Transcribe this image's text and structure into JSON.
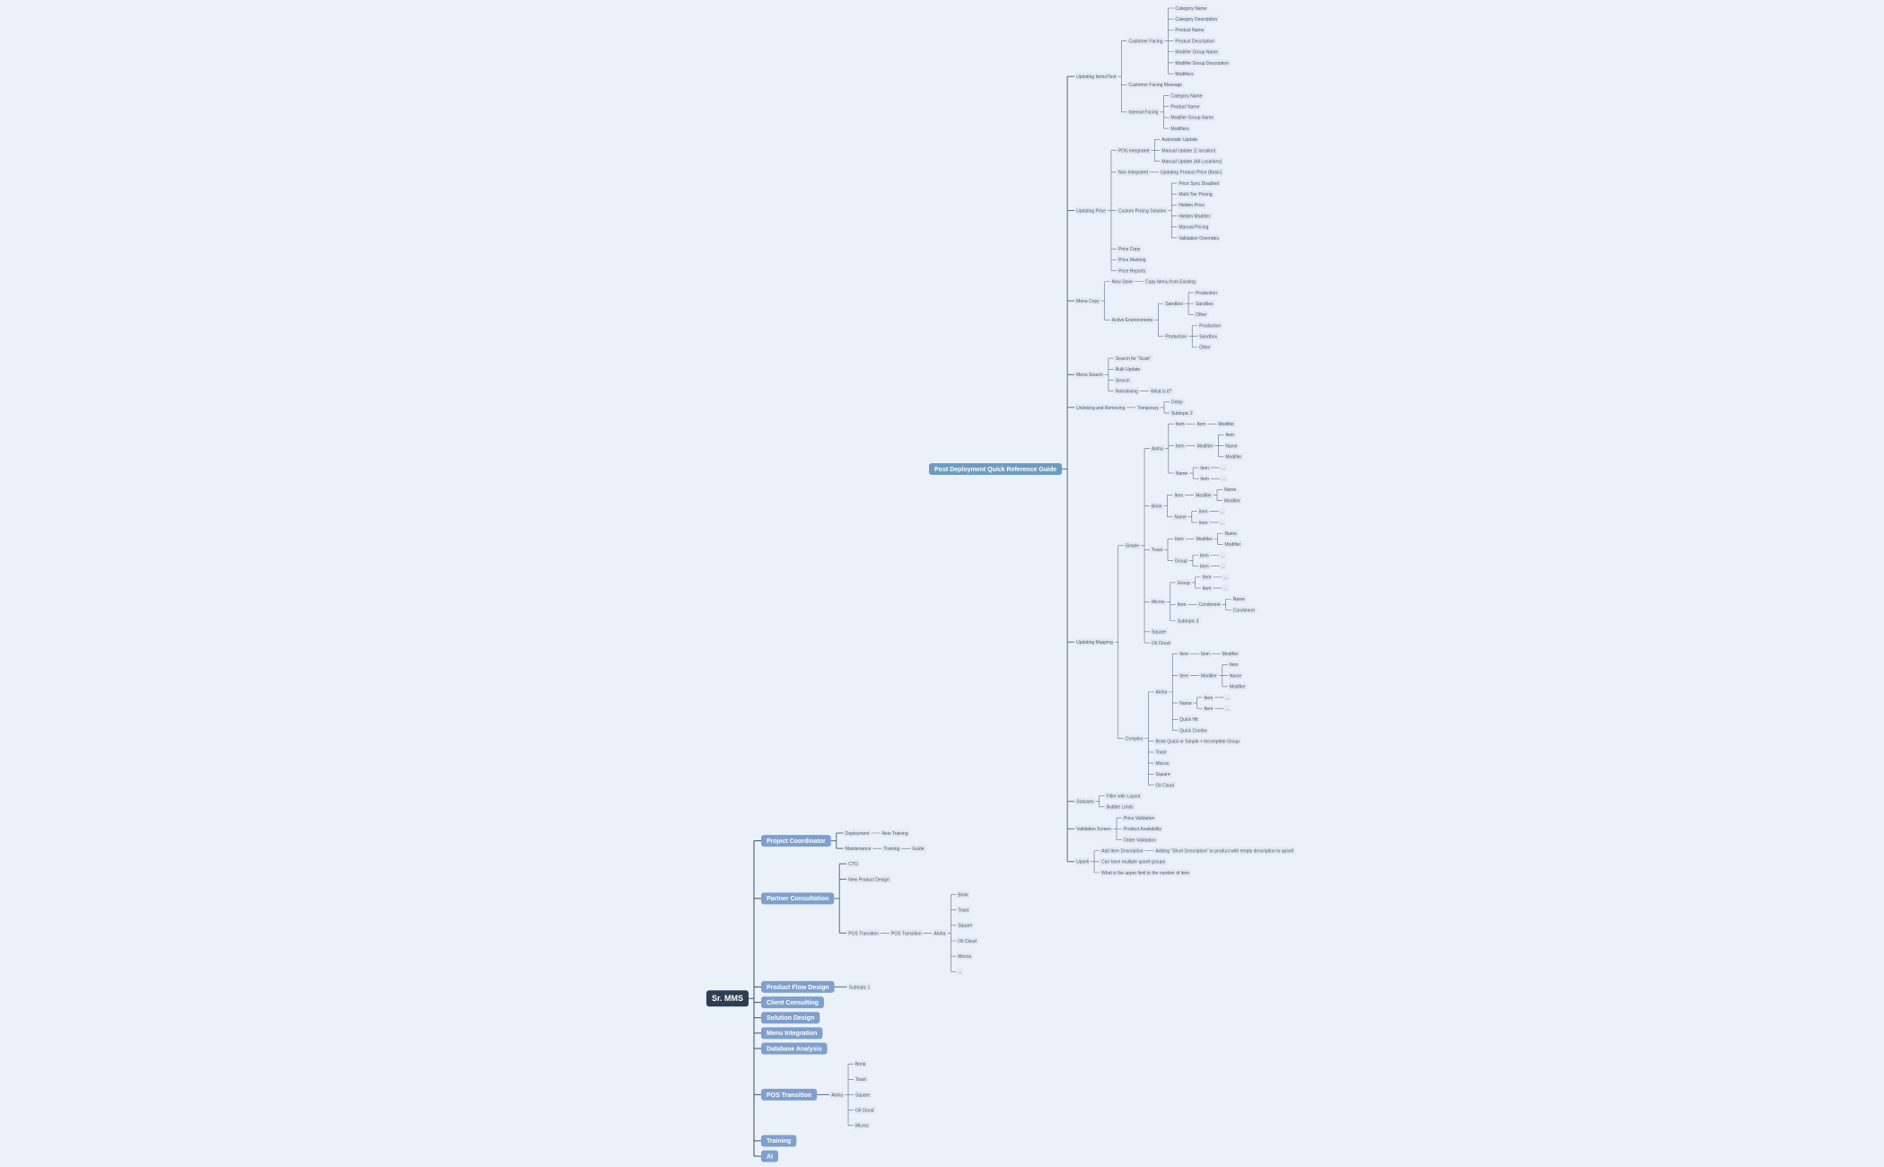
{
  "trees": [
    {
      "label": "Sr. MMS",
      "children": [
        {
          "label": "Project Coordinator",
          "children": [
            {
              "label": "Deployment",
              "children": [
                {
                  "label": "New Training"
                }
              ]
            },
            {
              "label": "Maintenance",
              "children": [
                {
                  "label": "Training",
                  "children": [
                    {
                      "label": "Guide"
                    }
                  ]
                }
              ]
            }
          ]
        },
        {
          "label": "Partner Consultation",
          "children": [
            {
              "label": "CTO"
            },
            {
              "label": "New Product Design"
            },
            {
              "label": "POS Transition",
              "children": [
                {
                  "label": "POS Transition",
                  "children": [
                    {
                      "label": "Aloha",
                      "children": [
                        {
                          "label": "Brink"
                        },
                        {
                          "label": "Toast"
                        },
                        {
                          "label": "Square"
                        },
                        {
                          "label": "Oil Cloud"
                        },
                        {
                          "label": "Micros"
                        },
                        {
                          "label": "..."
                        }
                      ]
                    }
                  ]
                }
              ]
            }
          ]
        },
        {
          "label": "Product Flow Design",
          "children": [
            {
              "label": "Subtopic 1"
            }
          ]
        },
        {
          "label": "Client Consulting"
        },
        {
          "label": "Solution Design"
        },
        {
          "label": "Menu Integration"
        },
        {
          "label": "Database Analysis"
        },
        {
          "label": "POS Transition",
          "children": [
            {
              "label": "Aloha",
              "children": [
                {
                  "label": "Brink"
                },
                {
                  "label": "Toast"
                },
                {
                  "label": "Square"
                },
                {
                  "label": "Oil Cloud"
                },
                {
                  "label": "Micros"
                }
              ]
            }
          ]
        },
        {
          "label": "Training"
        },
        {
          "label": "AI"
        }
      ]
    },
    {
      "label": "Post Deployment Quick Reference Guide",
      "children": [
        {
          "label": "Updating Items/Text",
          "children": [
            {
              "label": "Customer Facing",
              "children": [
                {
                  "label": "Category Name"
                },
                {
                  "label": "Category Description"
                },
                {
                  "label": "Product Name"
                },
                {
                  "label": "Product Description"
                },
                {
                  "label": "Modifier Group Name"
                },
                {
                  "label": "Modifier Group Description"
                },
                {
                  "label": "Modifiers"
                }
              ]
            },
            {
              "label": "Customer Facing Message"
            },
            {
              "label": "Internal Facing",
              "children": [
                {
                  "label": "Category Name"
                },
                {
                  "label": "Product Name"
                },
                {
                  "label": "Modifier Group Name"
                },
                {
                  "label": "Modifiers"
                }
              ]
            }
          ]
        },
        {
          "label": "Updating Price",
          "children": [
            {
              "label": "POS Integrated",
              "children": [
                {
                  "label": "Automatic Update"
                },
                {
                  "label": "Manual Update (1 location)"
                },
                {
                  "label": "Manual Update (All Locations)"
                }
              ]
            },
            {
              "label": "Non Integrated",
              "children": [
                {
                  "label": "Updating Product Price (Basic)"
                }
              ]
            },
            {
              "label": "Custom Pricing Solution",
              "children": [
                {
                  "label": "Price Sync Disabled"
                },
                {
                  "label": "Multi-Tier Pricing"
                },
                {
                  "label": "Hidden Price"
                },
                {
                  "label": "Hidden Modifier"
                },
                {
                  "label": "Manual Pricing"
                },
                {
                  "label": "Validation Overrides"
                }
              ]
            },
            {
              "label": "Price Copy"
            },
            {
              "label": "Price Marking"
            },
            {
              "label": "Price Reports"
            }
          ]
        },
        {
          "label": "Menu Copy",
          "children": [
            {
              "label": "New Store",
              "children": [
                {
                  "label": "Copy Menu from Existing"
                }
              ]
            },
            {
              "label": "Active Environments",
              "children": [
                {
                  "label": "Sandbox",
                  "children": [
                    {
                      "label": "Production"
                    },
                    {
                      "label": "Sandbox"
                    },
                    {
                      "label": "Other"
                    }
                  ]
                },
                {
                  "label": "Production",
                  "children": [
                    {
                      "label": "Production"
                    },
                    {
                      "label": "Sandbox"
                    },
                    {
                      "label": "Other"
                    }
                  ]
                }
              ]
            }
          ]
        },
        {
          "label": "Menu Search",
          "children": [
            {
              "label": "Search for \"Scan\""
            },
            {
              "label": "Bulk Update"
            },
            {
              "label": "Search"
            },
            {
              "label": "Reindexing",
              "children": [
                {
                  "label": "What is it?"
                }
              ]
            }
          ]
        },
        {
          "label": "Unlinking and Removing",
          "children": [
            {
              "label": "Temporary",
              "children": [
                {
                  "label": "Delay"
                },
                {
                  "label": "Subtopic 2"
                }
              ]
            }
          ]
        },
        {
          "label": "Updating Mapping",
          "children": [
            {
              "label": "Simple",
              "children": [
                {
                  "label": "Aloha",
                  "children": [
                    {
                      "label": "Item",
                      "children": [
                        {
                          "label": "Item",
                          "children": [
                            {
                              "label": "Modifier"
                            }
                          ]
                        }
                      ]
                    },
                    {
                      "label": "Item",
                      "children": [
                        {
                          "label": "Modifier",
                          "children": [
                            {
                              "label": "Item"
                            },
                            {
                              "label": "Name"
                            },
                            {
                              "label": "Modifier"
                            }
                          ]
                        }
                      ]
                    },
                    {
                      "label": "Name",
                      "children": [
                        {
                          "label": "Item",
                          "children": [
                            {
                              "label": "..."
                            }
                          ]
                        },
                        {
                          "label": "Item",
                          "children": [
                            {
                              "label": "..."
                            }
                          ]
                        }
                      ]
                    }
                  ]
                },
                {
                  "label": "Brink",
                  "children": [
                    {
                      "label": "Item",
                      "children": [
                        {
                          "label": "Modifier",
                          "children": [
                            {
                              "label": "Name"
                            },
                            {
                              "label": "Modifier"
                            }
                          ]
                        }
                      ]
                    },
                    {
                      "label": "Name",
                      "children": [
                        {
                          "label": "Item",
                          "children": [
                            {
                              "label": "..."
                            }
                          ]
                        },
                        {
                          "label": "Item",
                          "children": [
                            {
                              "label": "..."
                            }
                          ]
                        }
                      ]
                    }
                  ]
                },
                {
                  "label": "Toast",
                  "children": [
                    {
                      "label": "Item",
                      "children": [
                        {
                          "label": "Modifier",
                          "children": [
                            {
                              "label": "Name"
                            },
                            {
                              "label": "Modifier"
                            }
                          ]
                        }
                      ]
                    },
                    {
                      "label": "Group",
                      "children": [
                        {
                          "label": "Item",
                          "children": [
                            {
                              "label": "..."
                            }
                          ]
                        },
                        {
                          "label": "Item",
                          "children": [
                            {
                              "label": "..."
                            }
                          ]
                        }
                      ]
                    }
                  ]
                },
                {
                  "label": "Micros",
                  "children": [
                    {
                      "label": "Group",
                      "children": [
                        {
                          "label": "Item",
                          "children": [
                            {
                              "label": "..."
                            }
                          ]
                        },
                        {
                          "label": "Item",
                          "children": [
                            {
                              "label": "..."
                            }
                          ]
                        }
                      ]
                    },
                    {
                      "label": "Item",
                      "children": [
                        {
                          "label": "Condiment",
                          "children": [
                            {
                              "label": "Name"
                            },
                            {
                              "label": "Condiment"
                            }
                          ]
                        }
                      ]
                    },
                    {
                      "label": "Subtopic 3"
                    }
                  ]
                },
                {
                  "label": "Square"
                },
                {
                  "label": "Oil Cloud"
                }
              ]
            },
            {
              "label": "Complex",
              "children": [
                {
                  "label": "Aloha",
                  "children": [
                    {
                      "label": "Item",
                      "children": [
                        {
                          "label": "Item",
                          "children": [
                            {
                              "label": "Modifier"
                            }
                          ]
                        }
                      ]
                    },
                    {
                      "label": "Item",
                      "children": [
                        {
                          "label": "Modifier",
                          "children": [
                            {
                              "label": "Item"
                            },
                            {
                              "label": "Name"
                            },
                            {
                              "label": "Modifier"
                            }
                          ]
                        }
                      ]
                    },
                    {
                      "label": "Name",
                      "children": [
                        {
                          "label": "Item",
                          "children": [
                            {
                              "label": "..."
                            }
                          ]
                        },
                        {
                          "label": "Item",
                          "children": [
                            {
                              "label": "..."
                            }
                          ]
                        }
                      ]
                    },
                    {
                      "label": "Quick Hit"
                    },
                    {
                      "label": "Quick Combo"
                    }
                  ]
                },
                {
                  "label": "Brink Quick or Simple + Incomplete Group"
                },
                {
                  "label": "Toast"
                },
                {
                  "label": "Micros"
                },
                {
                  "label": "Square"
                },
                {
                  "label": "Oil Cloud"
                }
              ]
            }
          ]
        },
        {
          "label": "Statuses",
          "children": [
            {
              "label": "Filter with Layout"
            },
            {
              "label": "Bubble Limits"
            }
          ]
        },
        {
          "label": "Validation Screen",
          "children": [
            {
              "label": "Price Validation"
            },
            {
              "label": "Product Availability"
            },
            {
              "label": "Order Validation"
            }
          ]
        },
        {
          "label": "Upsell",
          "children": [
            {
              "label": "Add Item Description",
              "children": [
                {
                  "label": "Adding \"Short Description\" to product with empty description to upsell"
                }
              ]
            },
            {
              "label": "Can have multiple upsell groups"
            },
            {
              "label": "What is the upper limit to the number of item"
            }
          ]
        }
      ]
    }
  ]
}
